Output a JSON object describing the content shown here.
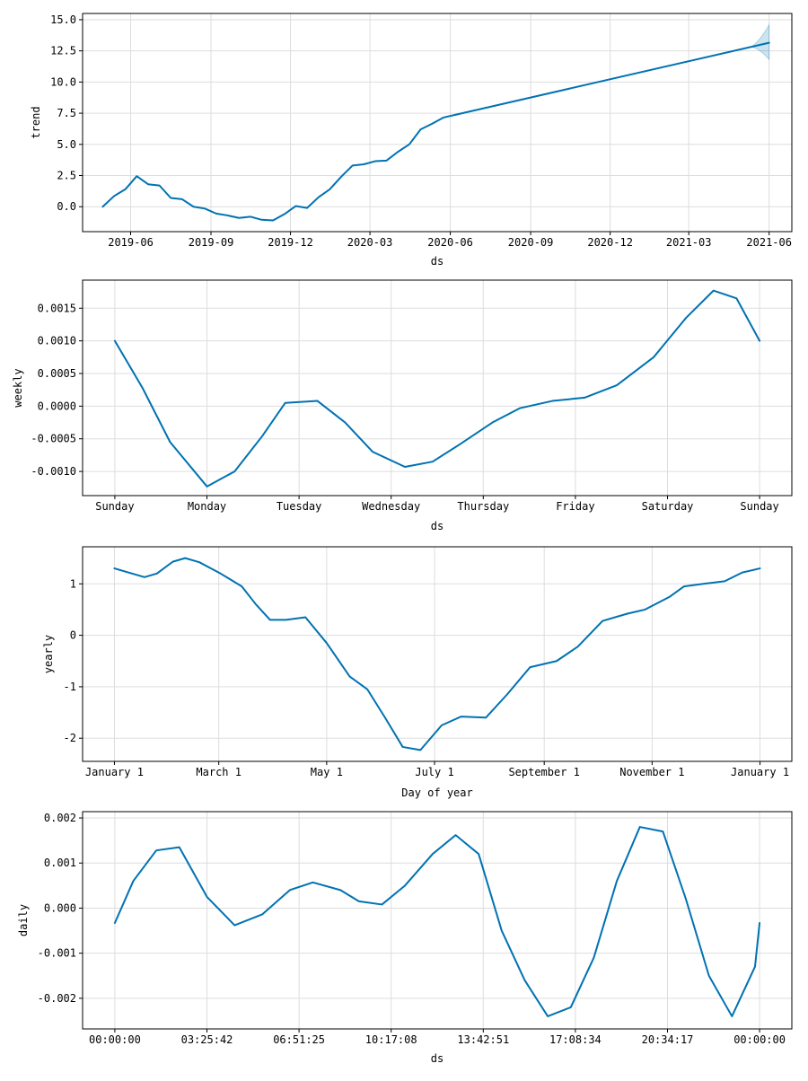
{
  "chart_data": [
    {
      "type": "line",
      "name": "trend",
      "xlabel": "ds",
      "ylabel": "trend",
      "grid": true,
      "line_color": "#0072b2",
      "band_color": "#0072b2",
      "x_tick_labels": [
        "2019-06",
        "2019-09",
        "2019-12",
        "2020-03",
        "2020-06",
        "2020-09",
        "2020-12",
        "2021-03",
        "2021-06"
      ],
      "y_tick_labels": [
        "0.0",
        "2.5",
        "5.0",
        "7.5",
        "10.0",
        "12.5",
        "15.0"
      ],
      "x_ticks": [
        "2019-06-01",
        "2019-09-01",
        "2019-12-01",
        "2020-03-01",
        "2020-06-01",
        "2020-09-01",
        "2020-12-01",
        "2021-03-01",
        "2021-06-01"
      ],
      "y_ticks": [
        0,
        2.5,
        5,
        7.5,
        10,
        12.5,
        15
      ],
      "xlim": [
        "2019-04-07",
        "2021-06-27"
      ],
      "ylim": [
        -2.0,
        15.5
      ],
      "points": [
        [
          "2019-04-30",
          0.0
        ],
        [
          "2019-05-13",
          0.85
        ],
        [
          "2019-05-26",
          1.4
        ],
        [
          "2019-06-08",
          2.45
        ],
        [
          "2019-06-21",
          1.8
        ],
        [
          "2019-07-04",
          1.7
        ],
        [
          "2019-07-17",
          0.7
        ],
        [
          "2019-07-30",
          0.6
        ],
        [
          "2019-08-12",
          0.0
        ],
        [
          "2019-08-25",
          -0.15
        ],
        [
          "2019-09-07",
          -0.55
        ],
        [
          "2019-09-20",
          -0.7
        ],
        [
          "2019-10-03",
          -0.9
        ],
        [
          "2019-10-16",
          -0.8
        ],
        [
          "2019-10-29",
          -1.05
        ],
        [
          "2019-11-11",
          -1.1
        ],
        [
          "2019-11-24",
          -0.6
        ],
        [
          "2019-12-07",
          0.05
        ],
        [
          "2019-12-20",
          -0.1
        ],
        [
          "2020-01-02",
          0.75
        ],
        [
          "2020-01-15",
          1.4
        ],
        [
          "2020-01-28",
          2.4
        ],
        [
          "2020-02-10",
          3.3
        ],
        [
          "2020-02-23",
          3.4
        ],
        [
          "2020-03-07",
          3.65
        ],
        [
          "2020-03-20",
          3.7
        ],
        [
          "2020-04-02",
          4.4
        ],
        [
          "2020-04-15",
          5.0
        ],
        [
          "2020-04-28",
          6.2
        ],
        [
          "2020-05-11",
          6.65
        ],
        [
          "2020-05-24",
          7.15
        ],
        [
          "2021-06-01",
          13.15
        ]
      ],
      "uncertainty": {
        "start": "2021-05-10",
        "upper_end": 14.6,
        "lower_end": 11.8
      }
    },
    {
      "type": "line",
      "name": "weekly",
      "xlabel": "ds",
      "ylabel": "weekly",
      "grid": true,
      "line_color": "#0072b2",
      "x_tick_labels": [
        "Sunday",
        "Monday",
        "Tuesday",
        "Wednesday",
        "Thursday",
        "Friday",
        "Saturday",
        "Sunday"
      ],
      "y_tick_labels": [
        "-0.0010",
        "-0.0005",
        "0.0000",
        "0.0005",
        "0.0010",
        "0.0015"
      ],
      "x_ticks": [
        0,
        1,
        2,
        3,
        4,
        5,
        6,
        7
      ],
      "y_ticks": [
        -0.001,
        -0.0005,
        0,
        0.0005,
        0.001,
        0.0015
      ],
      "xlim": [
        -0.35,
        7.35
      ],
      "ylim": [
        -0.00137,
        0.00193
      ],
      "points": [
        [
          0,
          0.001
        ],
        [
          0.3,
          0.00028
        ],
        [
          0.6,
          -0.00055
        ],
        [
          1.0,
          -0.00123
        ],
        [
          1.3,
          -0.001
        ],
        [
          1.6,
          -0.00046
        ],
        [
          1.85,
          5e-05
        ],
        [
          2.2,
          8e-05
        ],
        [
          2.5,
          -0.00025
        ],
        [
          2.8,
          -0.0007
        ],
        [
          3.15,
          -0.00093
        ],
        [
          3.45,
          -0.00085
        ],
        [
          3.75,
          -0.00058
        ],
        [
          4.1,
          -0.00025
        ],
        [
          4.4,
          -3e-05
        ],
        [
          4.75,
          8e-05
        ],
        [
          5.1,
          0.00013
        ],
        [
          5.45,
          0.00032
        ],
        [
          5.85,
          0.00075
        ],
        [
          6.2,
          0.00135
        ],
        [
          6.5,
          0.00177
        ],
        [
          6.75,
          0.00165
        ],
        [
          7.0,
          0.001
        ]
      ]
    },
    {
      "type": "line",
      "name": "yearly",
      "xlabel": "Day of year",
      "ylabel": "yearly",
      "grid": true,
      "line_color": "#0072b2",
      "x_tick_labels": [
        "January 1",
        "March 1",
        "May 1",
        "July 1",
        "September 1",
        "November 1",
        "January 1"
      ],
      "y_tick_labels": [
        "-2",
        "-1",
        "0",
        "1"
      ],
      "x_ticks": [
        0,
        59,
        120,
        181,
        243,
        304,
        365
      ],
      "y_ticks": [
        -2,
        -1,
        0,
        1
      ],
      "xlim": [
        -18,
        383
      ],
      "ylim": [
        -2.45,
        1.72
      ],
      "points": [
        [
          0,
          1.3
        ],
        [
          8,
          1.22
        ],
        [
          17,
          1.13
        ],
        [
          24,
          1.2
        ],
        [
          33,
          1.43
        ],
        [
          40,
          1.5
        ],
        [
          48,
          1.42
        ],
        [
          60,
          1.2
        ],
        [
          72,
          0.95
        ],
        [
          80,
          0.6
        ],
        [
          88,
          0.3
        ],
        [
          97,
          0.3
        ],
        [
          108,
          0.35
        ],
        [
          120,
          -0.15
        ],
        [
          133,
          -0.8
        ],
        [
          143,
          -1.05
        ],
        [
          153,
          -1.6
        ],
        [
          163,
          -2.17
        ],
        [
          173,
          -2.23
        ],
        [
          185,
          -1.75
        ],
        [
          196,
          -1.58
        ],
        [
          210,
          -1.6
        ],
        [
          222,
          -1.15
        ],
        [
          235,
          -0.62
        ],
        [
          250,
          -0.5
        ],
        [
          262,
          -0.22
        ],
        [
          276,
          0.28
        ],
        [
          290,
          0.42
        ],
        [
          300,
          0.5
        ],
        [
          314,
          0.75
        ],
        [
          322,
          0.95
        ],
        [
          333,
          1.0
        ],
        [
          345,
          1.05
        ],
        [
          355,
          1.22
        ],
        [
          365,
          1.3
        ]
      ]
    },
    {
      "type": "line",
      "name": "daily",
      "xlabel": "ds",
      "ylabel": "daily",
      "grid": true,
      "line_color": "#0072b2",
      "x_tick_labels": [
        "00:00:00",
        "03:25:42",
        "06:51:25",
        "10:17:08",
        "13:42:51",
        "17:08:34",
        "20:34:17",
        "00:00:00"
      ],
      "y_tick_labels": [
        "-0.002",
        "-0.001",
        "0.000",
        "0.001",
        "0.002"
      ],
      "x_ticks": [
        0,
        1,
        2,
        3,
        4,
        5,
        6,
        7
      ],
      "y_ticks": [
        -0.002,
        -0.001,
        0,
        0.001,
        0.002
      ],
      "xlim": [
        -0.35,
        7.35
      ],
      "ylim": [
        -0.00268,
        0.00214
      ],
      "points": [
        [
          0,
          -0.00033
        ],
        [
          0.2,
          0.0006
        ],
        [
          0.45,
          0.00128
        ],
        [
          0.7,
          0.00135
        ],
        [
          1.0,
          0.00025
        ],
        [
          1.3,
          -0.00038
        ],
        [
          1.6,
          -0.00014
        ],
        [
          1.9,
          0.0004
        ],
        [
          2.15,
          0.00057
        ],
        [
          2.45,
          0.0004
        ],
        [
          2.65,
          0.00015
        ],
        [
          2.9,
          8e-05
        ],
        [
          3.15,
          0.0005
        ],
        [
          3.45,
          0.0012
        ],
        [
          3.7,
          0.00162
        ],
        [
          3.95,
          0.0012
        ],
        [
          4.2,
          -0.0005
        ],
        [
          4.45,
          -0.0016
        ],
        [
          4.7,
          -0.0024
        ],
        [
          4.95,
          -0.0022
        ],
        [
          5.2,
          -0.0011
        ],
        [
          5.45,
          0.0006
        ],
        [
          5.7,
          0.0018
        ],
        [
          5.95,
          0.0017
        ],
        [
          6.2,
          0.0002
        ],
        [
          6.45,
          -0.0015
        ],
        [
          6.7,
          -0.0024
        ],
        [
          6.95,
          -0.0013
        ],
        [
          7.0,
          -0.00033
        ]
      ]
    }
  ]
}
